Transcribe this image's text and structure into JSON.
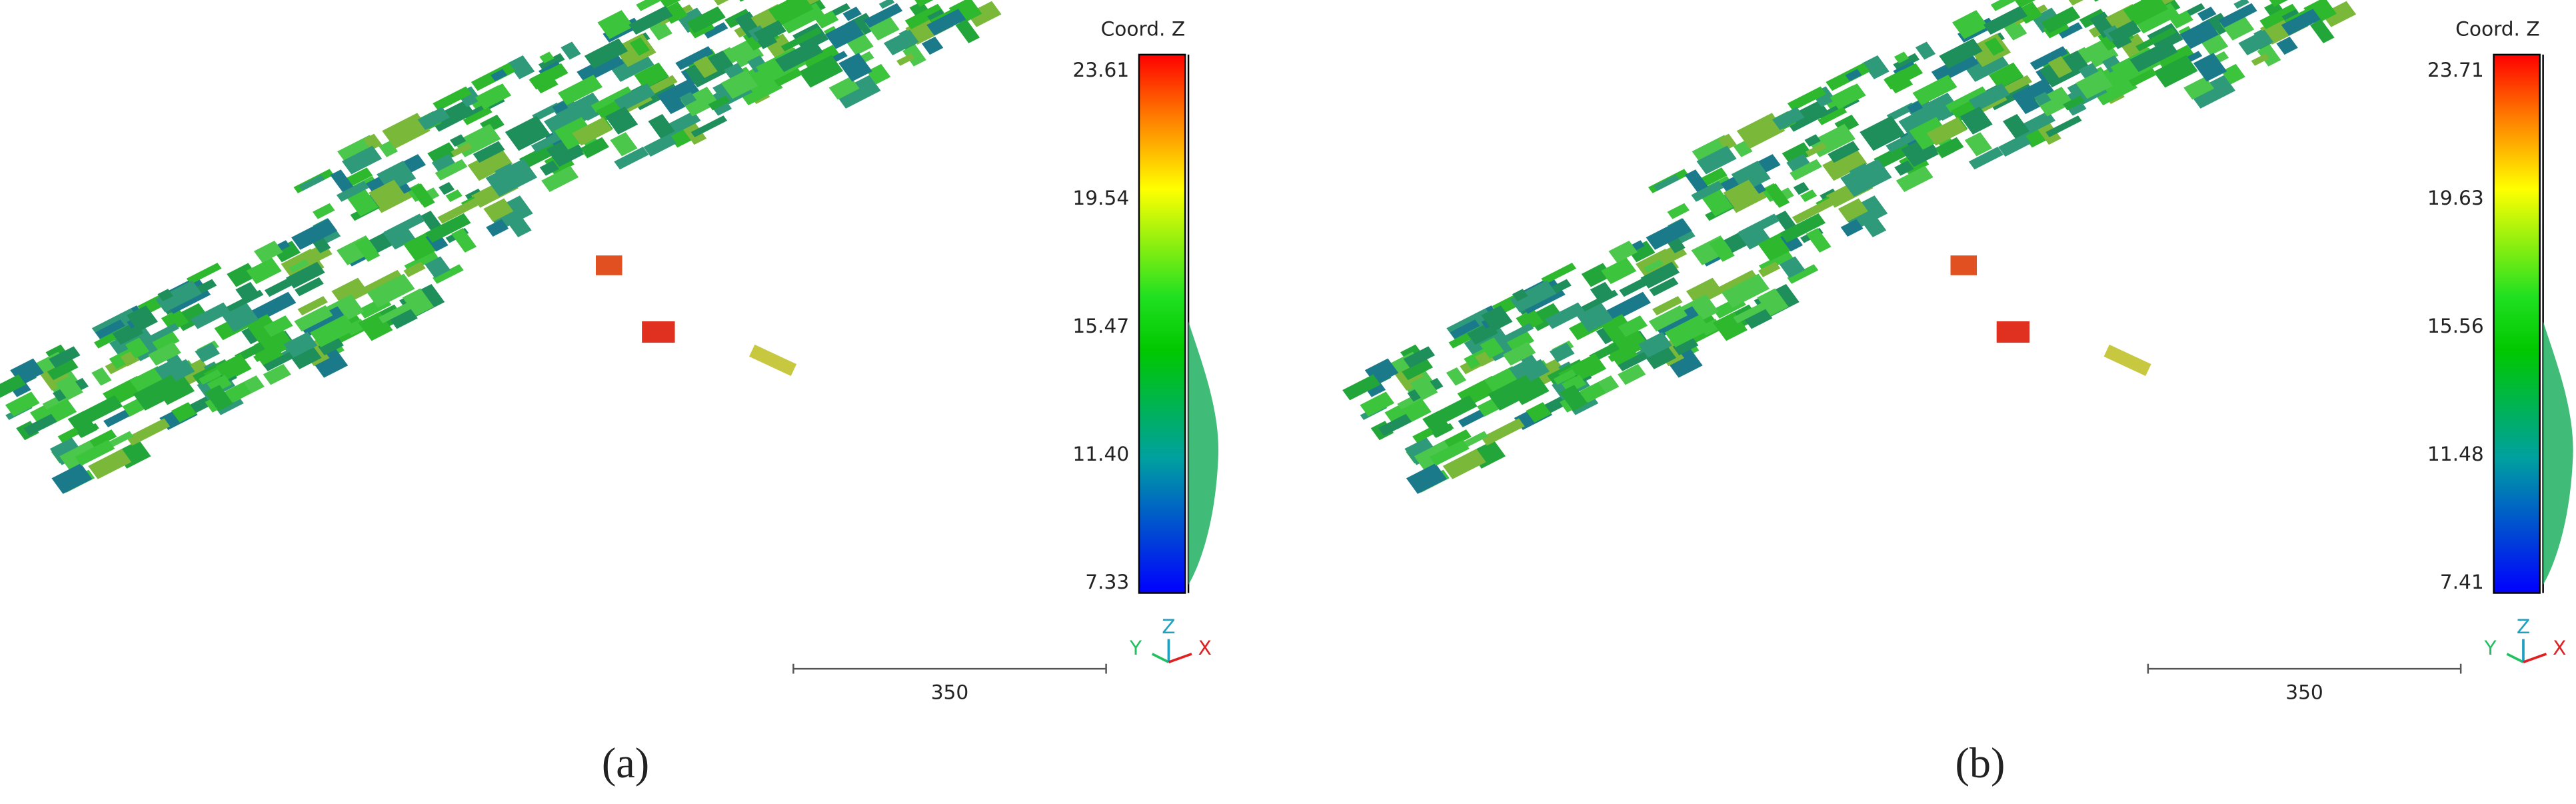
{
  "panels": [
    {
      "colorbar": {
        "title": "Coord. Z",
        "ticks": [
          "23.61",
          "19.54",
          "15.47",
          "11.40",
          "7.33"
        ]
      },
      "scale_label": "350",
      "axes": {
        "y": "Y",
        "z": "Z",
        "x": "X"
      },
      "caption": "(a)"
    },
    {
      "colorbar": {
        "title": "Coord. Z",
        "ticks": [
          "23.71",
          "19.63",
          "15.56",
          "11.48",
          "7.41"
        ]
      },
      "scale_label": "350",
      "axes": {
        "y": "Y",
        "z": "Z",
        "x": "X"
      },
      "caption": "(b)"
    }
  ]
}
